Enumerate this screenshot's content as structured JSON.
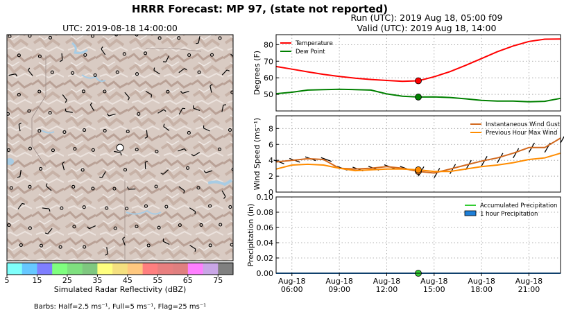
{
  "figure": {
    "suptitle": "HRRR Forecast: MP 97, (state not reported)",
    "run_label": "Run (UTC): 2019 Aug 18, 05:00 f09",
    "valid_label": "Valid (UTC): 2019 Aug 18, 14:00",
    "map_title": "UTC: 2019-08-18 14:00:00",
    "colorbar_label": "Simulated Radar Reflectivity (dBZ)",
    "barb_note": "Barbs: Half=2.5 ms⁻¹, Full=5 ms⁻¹, Flag=25 ms⁻¹"
  },
  "colorbar": {
    "ticks": [
      "5",
      "15",
      "25",
      "35",
      "45",
      "55",
      "65",
      "75"
    ],
    "colors": [
      "#7ffffb",
      "#66c8ff",
      "#7f7fff",
      "#7fff7f",
      "#7fe07f",
      "#7fc77f",
      "#ffff7f",
      "#f5e07f",
      "#ffc87f",
      "#ff7f7f",
      "#e97f7f",
      "#e07f7f",
      "#ff7fff",
      "#c9a6e6",
      "#808080"
    ]
  },
  "colors": {
    "temperature": "#ff0000",
    "dew_point": "#008000",
    "gust": "#d2691e",
    "max_wind": "#ff8c00",
    "accum_precip": "#33cc33",
    "hourly_precip": "#1e7fd8",
    "terrain": "#c8b4a8",
    "water": "#a8cce4"
  },
  "chart_data": [
    {
      "type": "line",
      "panel": "temperature",
      "ylabel": "Degrees (F)",
      "ylim": [
        40,
        86
      ],
      "yticks": [
        50,
        60,
        70,
        80
      ],
      "grid": true,
      "legend_placement": "top-left",
      "x_hours": [
        5,
        6,
        7,
        8,
        9,
        10,
        11,
        12,
        13,
        14,
        15,
        16,
        17,
        18,
        19,
        20,
        21,
        22,
        23
      ],
      "series": [
        {
          "name": "Temperature",
          "values": [
            66.8,
            65.2,
            63.6,
            62.1,
            60.8,
            59.8,
            59.0,
            58.4,
            57.9,
            58.2,
            60.6,
            63.7,
            67.5,
            71.6,
            75.7,
            79.2,
            81.9,
            83.3,
            83.4
          ]
        },
        {
          "name": "Dew Point",
          "values": [
            50.4,
            51.3,
            52.6,
            52.9,
            53.1,
            52.9,
            52.6,
            50.3,
            48.9,
            48.4,
            48.5,
            48.1,
            47.3,
            46.4,
            46.0,
            46.0,
            45.5,
            45.8,
            47.6
          ]
        }
      ],
      "markers": [
        {
          "series": "Temperature",
          "x": 14,
          "y": 58.2
        },
        {
          "series": "Dew Point",
          "x": 14,
          "y": 48.4
        }
      ]
    },
    {
      "type": "line",
      "panel": "wind",
      "ylabel": "Wind Speed (ms⁻¹)",
      "ylim": [
        0,
        9.6
      ],
      "yticks": [
        0,
        2,
        4,
        6,
        8
      ],
      "grid": true,
      "legend_placement": "top-right",
      "x_hours": [
        5,
        6,
        7,
        8,
        9,
        10,
        11,
        12,
        13,
        14,
        15,
        16,
        17,
        18,
        19,
        20,
        21,
        22,
        23
      ],
      "series": [
        {
          "name": "Instantaneous Wind Gust",
          "values": [
            3.8,
            4.0,
            4.2,
            4.1,
            3.0,
            2.9,
            3.0,
            3.2,
            3.0,
            2.6,
            2.4,
            2.9,
            3.4,
            3.9,
            4.3,
            4.9,
            5.6,
            5.6,
            6.8
          ]
        },
        {
          "name": "Previous Hour Max Wind",
          "values": [
            2.9,
            3.4,
            3.5,
            3.4,
            3.0,
            2.7,
            2.8,
            2.9,
            2.9,
            2.8,
            2.6,
            2.6,
            2.9,
            3.2,
            3.4,
            3.7,
            4.1,
            4.3,
            4.9
          ]
        }
      ],
      "markers": [
        {
          "series": "Instantaneous Wind Gust",
          "x": 14,
          "y": 2.6
        },
        {
          "series": "Previous Hour Max Wind",
          "x": 14,
          "y": 2.8
        }
      ]
    },
    {
      "type": "line",
      "panel": "precipitation",
      "ylabel": "Precipitation (in)",
      "ylim": [
        0,
        0.1
      ],
      "yticks": [
        "0.00",
        "0.02",
        "0.04",
        "0.06",
        "0.08",
        "0.10"
      ],
      "grid": true,
      "legend_placement": "top-right",
      "x_hours": [
        5,
        23
      ],
      "series": [
        {
          "name": "Accumulated Precipitation",
          "values": [
            0,
            0
          ]
        },
        {
          "name": "1 hour Precipitation",
          "values": [
            0,
            0
          ]
        }
      ],
      "markers": [
        {
          "series": "Accumulated Precipitation",
          "x": 14,
          "y": 0
        }
      ]
    }
  ],
  "x_axis": {
    "range_hours": [
      5,
      23
    ],
    "ticks": [
      {
        "hour": 6,
        "date": "Aug-18",
        "time": "06:00"
      },
      {
        "hour": 9,
        "date": "Aug-18",
        "time": "09:00"
      },
      {
        "hour": 12,
        "date": "Aug-18",
        "time": "12:00"
      },
      {
        "hour": 15,
        "date": "Aug-18",
        "time": "15:00"
      },
      {
        "hour": 18,
        "date": "Aug-18",
        "time": "18:00"
      },
      {
        "hour": 21,
        "date": "Aug-18",
        "time": "21:00"
      }
    ]
  }
}
